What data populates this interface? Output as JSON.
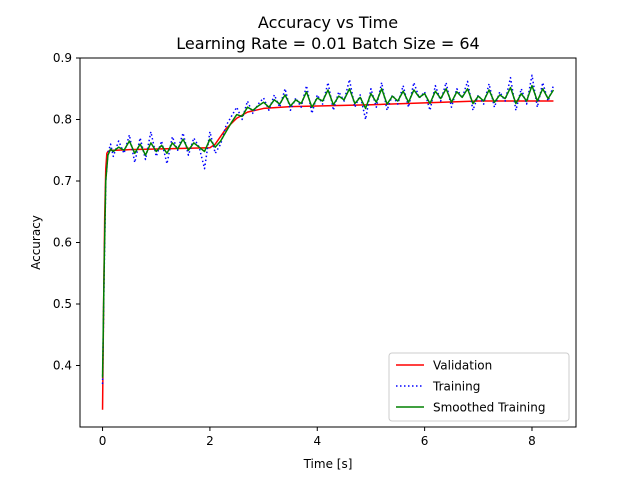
{
  "chart_data": {
    "type": "line",
    "title": "Accuracy vs Time",
    "subtitle": "Learning Rate = 0.01 Batch Size = 64",
    "xlabel": "Time [s]",
    "ylabel": "Accuracy",
    "xlim": [
      -0.42,
      8.82
    ],
    "ylim": [
      0.3,
      0.9
    ],
    "xticks": [
      0,
      2,
      4,
      6,
      8
    ],
    "yticks": [
      0.4,
      0.5,
      0.6,
      0.7,
      0.8,
      0.9
    ],
    "grid": false,
    "legend_position": "bottom-right",
    "series": [
      {
        "name": "Validation",
        "color": "#ff0000",
        "style": "solid",
        "x": [
          0,
          0.02,
          0.04,
          0.06,
          0.08,
          0.1,
          0.15,
          0.25,
          0.5,
          1.0,
          1.5,
          2.0,
          2.1,
          2.3,
          2.5,
          2.7,
          3.0,
          3.5,
          4.0,
          5.0,
          6.0,
          7.0,
          8.0,
          8.4
        ],
        "values": [
          0.328,
          0.5,
          0.64,
          0.72,
          0.745,
          0.748,
          0.75,
          0.75,
          0.751,
          0.752,
          0.753,
          0.754,
          0.76,
          0.785,
          0.802,
          0.812,
          0.818,
          0.821,
          0.822,
          0.824,
          0.827,
          0.83,
          0.83,
          0.83
        ]
      },
      {
        "name": "Training",
        "color": "#0000ff",
        "style": "dotted",
        "x": [
          0,
          0.03,
          0.06,
          0.1,
          0.15,
          0.2,
          0.3,
          0.4,
          0.5,
          0.6,
          0.7,
          0.8,
          0.9,
          1.0,
          1.1,
          1.2,
          1.3,
          1.4,
          1.5,
          1.6,
          1.7,
          1.8,
          1.9,
          2.0,
          2.1,
          2.2,
          2.3,
          2.4,
          2.5,
          2.6,
          2.7,
          2.8,
          2.9,
          3.0,
          3.1,
          3.2,
          3.3,
          3.4,
          3.5,
          3.6,
          3.7,
          3.8,
          3.9,
          4.0,
          4.1,
          4.2,
          4.3,
          4.4,
          4.5,
          4.6,
          4.7,
          4.8,
          4.9,
          5.0,
          5.1,
          5.2,
          5.3,
          5.4,
          5.5,
          5.6,
          5.7,
          5.8,
          5.9,
          6.0,
          6.1,
          6.2,
          6.3,
          6.4,
          6.5,
          6.6,
          6.7,
          6.8,
          6.9,
          7.0,
          7.1,
          7.2,
          7.3,
          7.4,
          7.5,
          7.6,
          7.7,
          7.8,
          7.9,
          8.0,
          8.1,
          8.2,
          8.3,
          8.4
        ],
        "values": [
          0.37,
          0.55,
          0.7,
          0.745,
          0.76,
          0.74,
          0.765,
          0.745,
          0.775,
          0.73,
          0.77,
          0.735,
          0.78,
          0.74,
          0.765,
          0.728,
          0.772,
          0.75,
          0.778,
          0.742,
          0.77,
          0.755,
          0.72,
          0.78,
          0.745,
          0.76,
          0.79,
          0.805,
          0.82,
          0.8,
          0.83,
          0.81,
          0.825,
          0.835,
          0.815,
          0.84,
          0.82,
          0.85,
          0.815,
          0.835,
          0.82,
          0.855,
          0.81,
          0.84,
          0.825,
          0.86,
          0.815,
          0.845,
          0.83,
          0.865,
          0.82,
          0.84,
          0.8,
          0.85,
          0.82,
          0.86,
          0.815,
          0.84,
          0.825,
          0.855,
          0.82,
          0.86,
          0.835,
          0.845,
          0.815,
          0.855,
          0.83,
          0.86,
          0.82,
          0.85,
          0.835,
          0.862,
          0.815,
          0.84,
          0.825,
          0.858,
          0.82,
          0.845,
          0.83,
          0.868,
          0.815,
          0.85,
          0.825,
          0.872,
          0.82,
          0.86,
          0.83,
          0.855
        ]
      },
      {
        "name": "Smoothed Training",
        "color": "#008000",
        "style": "solid",
        "x": [
          0,
          0.03,
          0.06,
          0.1,
          0.15,
          0.2,
          0.3,
          0.4,
          0.5,
          0.6,
          0.7,
          0.8,
          0.9,
          1.0,
          1.1,
          1.2,
          1.3,
          1.4,
          1.5,
          1.6,
          1.7,
          1.8,
          1.9,
          2.0,
          2.1,
          2.2,
          2.3,
          2.4,
          2.5,
          2.6,
          2.7,
          2.8,
          2.9,
          3.0,
          3.1,
          3.2,
          3.3,
          3.4,
          3.5,
          3.6,
          3.7,
          3.8,
          3.9,
          4.0,
          4.1,
          4.2,
          4.3,
          4.4,
          4.5,
          4.6,
          4.7,
          4.8,
          4.9,
          5.0,
          5.1,
          5.2,
          5.3,
          5.4,
          5.5,
          5.6,
          5.7,
          5.8,
          5.9,
          6.0,
          6.1,
          6.2,
          6.3,
          6.4,
          6.5,
          6.6,
          6.7,
          6.8,
          6.9,
          7.0,
          7.1,
          7.2,
          7.3,
          7.4,
          7.5,
          7.6,
          7.7,
          7.8,
          7.9,
          8.0,
          8.1,
          8.2,
          8.3,
          8.4
        ],
        "values": [
          0.38,
          0.56,
          0.7,
          0.742,
          0.752,
          0.748,
          0.755,
          0.75,
          0.765,
          0.745,
          0.76,
          0.742,
          0.762,
          0.748,
          0.758,
          0.745,
          0.762,
          0.752,
          0.768,
          0.75,
          0.762,
          0.755,
          0.748,
          0.768,
          0.755,
          0.765,
          0.78,
          0.795,
          0.808,
          0.805,
          0.82,
          0.815,
          0.822,
          0.828,
          0.82,
          0.832,
          0.825,
          0.84,
          0.822,
          0.832,
          0.826,
          0.845,
          0.82,
          0.835,
          0.83,
          0.848,
          0.824,
          0.838,
          0.832,
          0.85,
          0.826,
          0.836,
          0.818,
          0.842,
          0.828,
          0.85,
          0.825,
          0.838,
          0.83,
          0.846,
          0.828,
          0.848,
          0.836,
          0.842,
          0.826,
          0.846,
          0.834,
          0.85,
          0.828,
          0.845,
          0.836,
          0.85,
          0.826,
          0.838,
          0.83,
          0.848,
          0.828,
          0.84,
          0.834,
          0.852,
          0.826,
          0.842,
          0.83,
          0.855,
          0.83,
          0.85,
          0.834,
          0.848
        ]
      }
    ]
  }
}
